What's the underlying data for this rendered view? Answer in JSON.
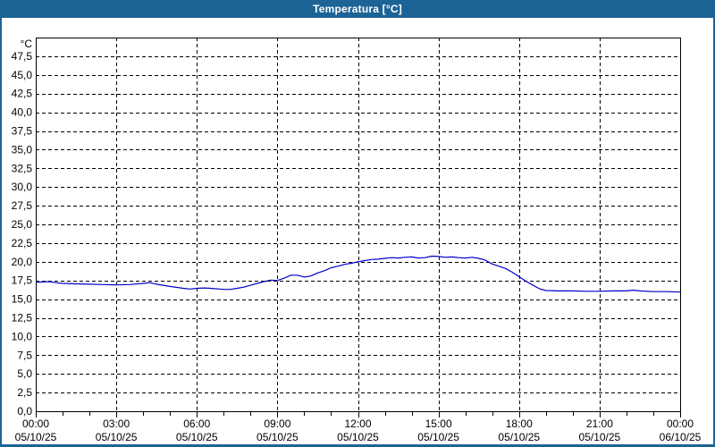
{
  "window": {
    "title": "Temperatura [°C]",
    "title_bar_color": "#1d6496",
    "border_color": "#1d6496",
    "background_color": "#ffffff"
  },
  "chart_data": {
    "type": "line",
    "title": "Temperatura [°C]",
    "xlabel": "",
    "ylabel": "°C",
    "grid": {
      "style": "dashed",
      "color": "#000000",
      "horizontal": true,
      "vertical": true
    },
    "legend": "none",
    "y_axis": {
      "unit_label": "°C",
      "min": 0,
      "max": 50,
      "tick_step": 2.5,
      "decimal_separator": ",",
      "ticks": [
        {
          "value": 47.5,
          "label": "47,5"
        },
        {
          "value": 45.0,
          "label": "45,0"
        },
        {
          "value": 42.5,
          "label": "42,5"
        },
        {
          "value": 40.0,
          "label": "40,0"
        },
        {
          "value": 37.5,
          "label": "37,5"
        },
        {
          "value": 35.0,
          "label": "35,0"
        },
        {
          "value": 32.5,
          "label": "32,5"
        },
        {
          "value": 30.0,
          "label": "30,0"
        },
        {
          "value": 27.5,
          "label": "27,5"
        },
        {
          "value": 25.0,
          "label": "25,0"
        },
        {
          "value": 22.5,
          "label": "22,5"
        },
        {
          "value": 20.0,
          "label": "20,0"
        },
        {
          "value": 17.5,
          "label": "17,5"
        },
        {
          "value": 15.0,
          "label": "15,0"
        },
        {
          "value": 12.5,
          "label": "12,5"
        },
        {
          "value": 10.0,
          "label": "10,0"
        },
        {
          "value": 7.5,
          "label": "7,5"
        },
        {
          "value": 5.0,
          "label": "5,0"
        },
        {
          "value": 2.5,
          "label": "2,5"
        },
        {
          "value": 0.0,
          "label": "0,0"
        }
      ]
    },
    "x_axis": {
      "span_hours": 24,
      "minor_tick_hours": 1,
      "major_tick_hours": 3,
      "ticks": [
        {
          "hour": 0,
          "time": "00:00",
          "date": "05/10/25"
        },
        {
          "hour": 3,
          "time": "03:00",
          "date": "05/10/25"
        },
        {
          "hour": 6,
          "time": "06:00",
          "date": "05/10/25"
        },
        {
          "hour": 9,
          "time": "09:00",
          "date": "05/10/25"
        },
        {
          "hour": 12,
          "time": "12:00",
          "date": "05/10/25"
        },
        {
          "hour": 15,
          "time": "15:00",
          "date": "05/10/25"
        },
        {
          "hour": 18,
          "time": "18:00",
          "date": "05/10/25"
        },
        {
          "hour": 21,
          "time": "21:00",
          "date": "05/10/25"
        },
        {
          "hour": 24,
          "time": "00:00",
          "date": "06/10/25"
        }
      ]
    },
    "series": [
      {
        "name": "Temperatura",
        "color": "#0000c8",
        "x_hours": [
          0,
          0.25,
          0.5,
          0.75,
          1,
          1.5,
          2,
          2.5,
          3,
          3.5,
          4,
          4.25,
          4.5,
          5,
          5.5,
          5.75,
          6,
          6.25,
          6.5,
          7,
          7.25,
          7.5,
          7.75,
          8,
          8.25,
          8.5,
          8.75,
          9,
          9.25,
          9.5,
          9.75,
          10,
          10.25,
          10.5,
          10.75,
          11,
          11.25,
          11.5,
          11.75,
          12,
          12.25,
          12.5,
          12.75,
          13,
          13.25,
          13.5,
          13.75,
          14,
          14.25,
          14.5,
          14.75,
          15,
          15.25,
          15.5,
          15.75,
          16,
          16.25,
          16.5,
          16.75,
          17,
          17.25,
          17.5,
          17.75,
          18,
          18.25,
          18.5,
          18.75,
          19,
          19.5,
          20,
          20.5,
          21,
          21.5,
          22,
          22.25,
          22.5,
          23,
          23.5,
          24
        ],
        "values": [
          17.25,
          17.3,
          17.35,
          17.2,
          17.1,
          17.05,
          17.0,
          16.95,
          16.9,
          16.95,
          17.1,
          17.2,
          17.0,
          16.7,
          16.45,
          16.35,
          16.45,
          16.5,
          16.45,
          16.3,
          16.3,
          16.45,
          16.6,
          16.85,
          17.1,
          17.35,
          17.55,
          17.5,
          17.8,
          18.2,
          18.2,
          17.95,
          18.1,
          18.5,
          18.8,
          19.2,
          19.4,
          19.65,
          19.8,
          20.0,
          20.15,
          20.3,
          20.35,
          20.45,
          20.55,
          20.5,
          20.6,
          20.65,
          20.5,
          20.55,
          20.75,
          20.7,
          20.6,
          20.65,
          20.55,
          20.5,
          20.6,
          20.45,
          20.2,
          19.7,
          19.4,
          19.1,
          18.6,
          18.0,
          17.4,
          16.9,
          16.4,
          16.15,
          16.1,
          16.1,
          16.05,
          16.05,
          16.1,
          16.1,
          16.2,
          16.1,
          16.0,
          16.0,
          15.95
        ]
      }
    ]
  }
}
